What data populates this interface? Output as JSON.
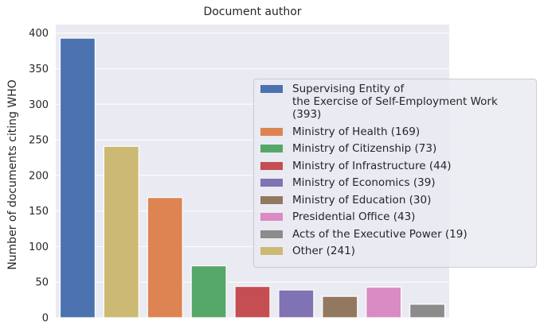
{
  "chart_data": {
    "type": "bar",
    "title": "Document author",
    "xlabel": "",
    "ylabel": "Number of documents citing WHO",
    "ylim": [
      0,
      412
    ],
    "yticks": [
      0,
      50,
      100,
      150,
      200,
      250,
      300,
      350,
      400
    ],
    "grid": true,
    "legend_position": "right",
    "series": [
      {
        "name": "Supervising Entity of\nthe Exercise of Self-Employment Work (393)",
        "value": 393,
        "color": "#4c72b0"
      },
      {
        "name": "Other (241)",
        "value": 241,
        "color": "#ccb974"
      },
      {
        "name": "Ministry of Health (169)",
        "value": 169,
        "color": "#dd8452"
      },
      {
        "name": "Ministry of Citizenship (73)",
        "value": 73,
        "color": "#55a868"
      },
      {
        "name": "Ministry of Infrastructure (44)",
        "value": 44,
        "color": "#c44e52"
      },
      {
        "name": "Ministry of Economics (39)",
        "value": 39,
        "color": "#8172b3"
      },
      {
        "name": "Ministry of Education (30)",
        "value": 30,
        "color": "#937860"
      },
      {
        "name": "Presidential Office (43)",
        "value": 43,
        "color": "#da8bc3"
      },
      {
        "name": "Acts of the Executive Power (19)",
        "value": 19,
        "color": "#8c8c8c"
      }
    ],
    "legend_order": [
      "Supervising Entity of\nthe Exercise of Self-Employment Work (393)",
      "Ministry of Health (169)",
      "Ministry of Citizenship (73)",
      "Ministry of Infrastructure (44)",
      "Ministry of Economics (39)",
      "Ministry of Education (30)",
      "Presidential Office (43)",
      "Acts of the Executive Power (19)",
      "Other (241)"
    ],
    "colors": {
      "plot_background": "#eaeaf2",
      "grid": "#ffffff"
    }
  }
}
